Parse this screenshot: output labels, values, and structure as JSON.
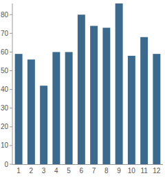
{
  "chart_data": {
    "type": "bar",
    "categories": [
      "1",
      "2",
      "3",
      "4",
      "5",
      "6",
      "7",
      "8",
      "9",
      "10",
      "11",
      "12"
    ],
    "values": [
      59,
      56,
      42,
      60,
      60,
      80,
      74,
      73,
      86,
      58,
      68,
      59
    ],
    "color": "#3b6a8e",
    "ylim": [
      0,
      86
    ],
    "yticks": [
      0,
      10,
      20,
      30,
      40,
      50,
      60,
      70,
      80
    ],
    "grid": false
  }
}
